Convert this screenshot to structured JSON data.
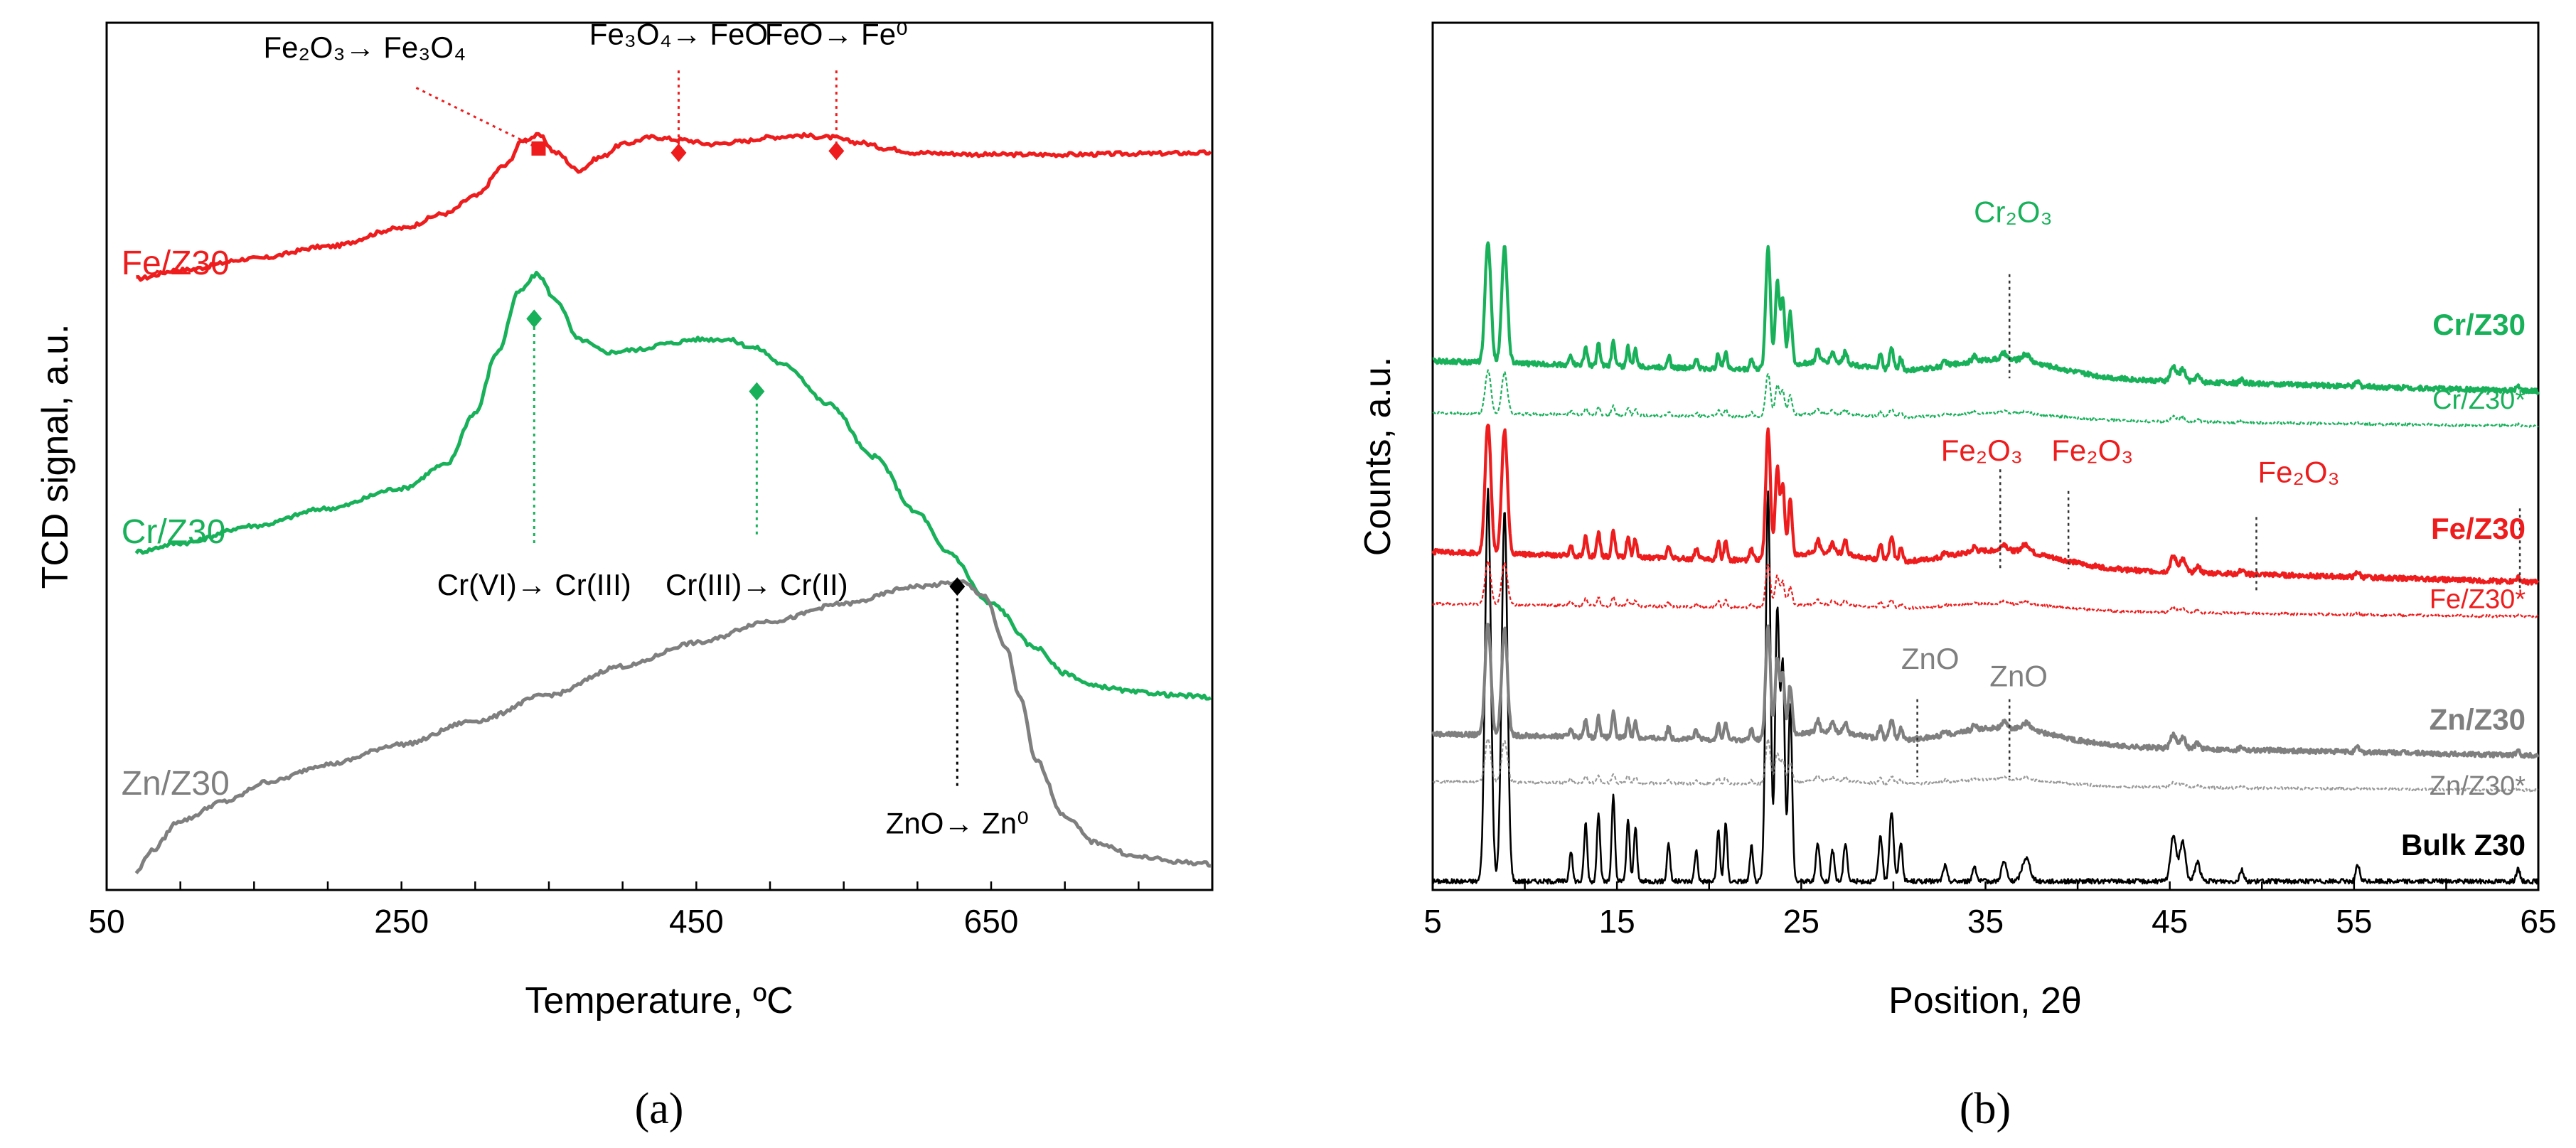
{
  "colors": {
    "fe": "#ee1c1c",
    "cr": "#18b15a",
    "zn": "#7f7f7f",
    "bulk": "#000000",
    "axis": "#000000"
  },
  "panel_labels": {
    "a": "(a)",
    "b": "(b)"
  },
  "chart_data": [
    {
      "id": "a",
      "type": "line",
      "title": "",
      "xlabel": "Temperature, ºC",
      "ylabel": "TCD signal, a.u.",
      "xlim": [
        50,
        800
      ],
      "ylim": [
        0,
        100
      ],
      "xticks": [
        50,
        250,
        450,
        650
      ],
      "xticklabels": [
        "50",
        "250",
        "450",
        "650"
      ],
      "minor_tick_step": 50,
      "grid": false,
      "series": [
        {
          "key": "fe",
          "name": "Fe/Z30",
          "color": "#ee1c1c",
          "x": [
            70,
            100,
            150,
            200,
            250,
            280,
            300,
            320,
            333,
            343,
            355,
            370,
            385,
            400,
            420,
            440,
            460,
            480,
            500,
            520,
            540,
            560,
            580,
            600,
            650,
            700,
            750,
            800
          ],
          "y": [
            70.5,
            71.5,
            72.8,
            74.2,
            76.3,
            78.0,
            80.0,
            83.5,
            86.5,
            87.0,
            85.0,
            83.0,
            84.5,
            86.0,
            86.8,
            86.5,
            86.0,
            86.3,
            86.8,
            87.0,
            86.8,
            86.2,
            85.5,
            85.0,
            84.8,
            84.8,
            84.9,
            85.0
          ]
        },
        {
          "key": "cr",
          "name": "Cr/Z30",
          "color": "#18b15a",
          "x": [
            70,
            100,
            150,
            200,
            250,
            280,
            300,
            315,
            330,
            342,
            355,
            370,
            390,
            410,
            430,
            450,
            470,
            490,
            510,
            540,
            570,
            600,
            620,
            650,
            680,
            700,
            720,
            750,
            780,
            800
          ],
          "y": [
            39.0,
            40.0,
            42.0,
            44.0,
            46.3,
            49.0,
            55.0,
            62.0,
            69.0,
            71.0,
            68.0,
            63.5,
            62.0,
            62.3,
            63.0,
            63.5,
            63.5,
            62.5,
            60.5,
            56.0,
            50.0,
            43.5,
            39.0,
            33.0,
            28.0,
            25.0,
            23.5,
            22.8,
            22.4,
            22.2
          ]
        },
        {
          "key": "zn",
          "name": "Zn/Z30",
          "color": "#7f7f7f",
          "x": [
            70,
            80,
            100,
            130,
            160,
            200,
            250,
            300,
            350,
            400,
            450,
            500,
            550,
            600,
            630,
            645,
            660,
            670,
            680,
            700,
            720,
            750,
            780,
            800
          ],
          "y": [
            2.0,
            4.5,
            8.0,
            10.2,
            12.5,
            14.5,
            16.8,
            19.5,
            22.5,
            25.8,
            28.5,
            31.0,
            33.0,
            35.0,
            35.5,
            34.0,
            28.0,
            22.0,
            15.0,
            8.5,
            5.5,
            3.8,
            3.2,
            3.0
          ]
        }
      ],
      "series_labels": [
        {
          "series": "fe",
          "text": "Fe/Z30",
          "x": 60,
          "y": 71
        },
        {
          "series": "cr",
          "text": "Cr/Z30",
          "x": 60,
          "y": 40
        },
        {
          "series": "zn",
          "text": "Zn/Z30",
          "x": 60,
          "y": 11
        }
      ],
      "annotations": [
        {
          "series": "fe",
          "x": 343,
          "marker": "square",
          "text": "Fe₂O₃→ Fe₃O₄",
          "label_x": 225,
          "label_y": 96,
          "leader": "diagonal",
          "leader_x": 260,
          "leader_y": 92.5
        },
        {
          "series": "fe",
          "x": 438,
          "marker": "diamond",
          "text": "Fe₃O₄→ FeO",
          "label_x": 438,
          "label_y": 97.5,
          "leader": "vertical",
          "leader_y": 94.5
        },
        {
          "series": "fe",
          "x": 545,
          "marker": "diamond",
          "text": "FeO→ Fe⁰",
          "label_x": 545,
          "label_y": 97.5,
          "leader": "vertical",
          "leader_y": 94.5
        },
        {
          "series": "cr",
          "x": 340,
          "marker": "diamond",
          "text": "Cr(VI)→ Cr(III)",
          "label_x": 340,
          "label_y": 34,
          "leader": "vertical",
          "leader_y": 40
        },
        {
          "series": "cr",
          "x": 491,
          "marker": "diamond",
          "text": "Cr(III)→ Cr(II)",
          "label_x": 491,
          "label_y": 34,
          "leader": "vertical",
          "leader_y": 41
        },
        {
          "series": "zn",
          "x": 627,
          "marker": "diamond",
          "text": "ZnO→ Zn⁰",
          "label_x": 627,
          "label_y": 6.5,
          "leader": "vertical",
          "leader_y": 12
        }
      ]
    },
    {
      "id": "b",
      "type": "line",
      "title": "",
      "xlabel": "Position, 2θ",
      "ylabel": "Counts, a.u.",
      "xlim": [
        5,
        65
      ],
      "ylim": [
        0,
        100
      ],
      "xticks": [
        5,
        15,
        25,
        35,
        45,
        55,
        65
      ],
      "xticklabels": [
        "5",
        "15",
        "25",
        "35",
        "45",
        "55",
        "65"
      ],
      "minor_tick_step": 5,
      "grid": false,
      "peaks": [
        {
          "pos": 8.0,
          "h": 1.0,
          "w": 0.22
        },
        {
          "pos": 8.9,
          "h": 0.95,
          "w": 0.22
        },
        {
          "pos": 12.5,
          "h": 0.08,
          "w": 0.12
        },
        {
          "pos": 13.3,
          "h": 0.15,
          "w": 0.12
        },
        {
          "pos": 14.0,
          "h": 0.18,
          "w": 0.12
        },
        {
          "pos": 14.8,
          "h": 0.22,
          "w": 0.12
        },
        {
          "pos": 15.6,
          "h": 0.16,
          "w": 0.12
        },
        {
          "pos": 16.0,
          "h": 0.14,
          "w": 0.12
        },
        {
          "pos": 17.8,
          "h": 0.1,
          "w": 0.12
        },
        {
          "pos": 19.3,
          "h": 0.08,
          "w": 0.12
        },
        {
          "pos": 20.5,
          "h": 0.13,
          "w": 0.12
        },
        {
          "pos": 20.9,
          "h": 0.15,
          "w": 0.12
        },
        {
          "pos": 22.3,
          "h": 0.09,
          "w": 0.12
        },
        {
          "pos": 23.2,
          "h": 1.0,
          "w": 0.18
        },
        {
          "pos": 23.7,
          "h": 0.7,
          "w": 0.16
        },
        {
          "pos": 24.0,
          "h": 0.55,
          "w": 0.15
        },
        {
          "pos": 24.4,
          "h": 0.45,
          "w": 0.15
        },
        {
          "pos": 25.9,
          "h": 0.1,
          "w": 0.14
        },
        {
          "pos": 26.7,
          "h": 0.08,
          "w": 0.14
        },
        {
          "pos": 27.4,
          "h": 0.1,
          "w": 0.14
        },
        {
          "pos": 29.3,
          "h": 0.12,
          "w": 0.14
        },
        {
          "pos": 29.9,
          "h": 0.18,
          "w": 0.16
        },
        {
          "pos": 30.4,
          "h": 0.1,
          "w": 0.14
        },
        {
          "pos": 32.8,
          "h": 0.04,
          "w": 0.15
        },
        {
          "pos": 34.4,
          "h": 0.04,
          "w": 0.15
        },
        {
          "pos": 36.0,
          "h": 0.05,
          "w": 0.2
        },
        {
          "pos": 37.2,
          "h": 0.06,
          "w": 0.3
        },
        {
          "pos": 45.2,
          "h": 0.12,
          "w": 0.22
        },
        {
          "pos": 45.7,
          "h": 0.1,
          "w": 0.22
        },
        {
          "pos": 46.5,
          "h": 0.05,
          "w": 0.2
        },
        {
          "pos": 48.9,
          "h": 0.03,
          "w": 0.15
        },
        {
          "pos": 55.2,
          "h": 0.04,
          "w": 0.15
        },
        {
          "pos": 63.9,
          "h": 0.03,
          "w": 0.15
        }
      ],
      "series": [
        {
          "key": "cr",
          "name": "Cr/Z30",
          "color": "#18b15a",
          "dashed": false,
          "bold_label": true,
          "baseline_start": 61,
          "baseline_end": 57.5,
          "scale": 14,
          "hump": 2.0
        },
        {
          "key": "cr_star",
          "name": "Cr/Z30*",
          "color": "#18b15a",
          "dashed": true,
          "bold_label": false,
          "baseline_start": 55,
          "baseline_end": 53.5,
          "scale": 5,
          "hump": 0.8
        },
        {
          "key": "fe",
          "name": "Fe/Z30",
          "color": "#ee1c1c",
          "dashed": false,
          "bold_label": true,
          "baseline_start": 39,
          "baseline_end": 35.5,
          "scale": 15,
          "hump": 2.0
        },
        {
          "key": "fe_star",
          "name": "Fe/Z30*",
          "color": "#ee1c1c",
          "dashed": true,
          "bold_label": false,
          "baseline_start": 33,
          "baseline_end": 31.5,
          "scale": 5,
          "hump": 0.8
        },
        {
          "key": "zn",
          "name": "Zn/Z30",
          "color": "#7f7f7f",
          "dashed": false,
          "bold_label": true,
          "baseline_start": 18,
          "baseline_end": 15.5,
          "scale": 13,
          "hump": 2.0
        },
        {
          "key": "zn_star",
          "name": "Zn/Z30*",
          "color": "#7f7f7f",
          "dashed": true,
          "bold_label": false,
          "baseline_start": 12.5,
          "baseline_end": 11.5,
          "scale": 5,
          "hump": 0.8
        },
        {
          "key": "bulk",
          "name": "Bulk Z30",
          "color": "#000000",
          "dashed": false,
          "bold_label": true,
          "baseline_start": 1,
          "baseline_end": 1,
          "scale": 45,
          "hump": 0.0
        }
      ],
      "series_labels": [
        {
          "series": "cr",
          "text": "Cr/Z30",
          "y": 64
        },
        {
          "series": "cr_star",
          "text": "Cr/Z30*",
          "y": 55.5
        },
        {
          "series": "fe",
          "text": "Fe/Z30",
          "y": 40.5
        },
        {
          "series": "fe_star",
          "text": "Fe/Z30*",
          "y": 32.5
        },
        {
          "series": "zn",
          "text": "Zn/Z30",
          "y": 18.5
        },
        {
          "series": "zn_star",
          "text": "Zn/Z30*",
          "y": 11
        },
        {
          "series": "bulk",
          "text": "Bulk Z30",
          "y": 4
        }
      ],
      "reference_lines": [
        {
          "phase": "Cr₂O₃",
          "color": "#18b15a",
          "x": 36.3,
          "y_top": 71,
          "y_bottom": 59,
          "label_x": 36.5,
          "label_y": 77
        },
        {
          "phase": "Fe₂O₃",
          "color": "#ee1c1c",
          "x": 35.8,
          "y_top": 48.5,
          "y_bottom": 37,
          "label_x": 34.8,
          "label_y": 49.5
        },
        {
          "phase": "Fe₂O₃",
          "color": "#ee1c1c",
          "x": 39.5,
          "y_top": 46,
          "y_bottom": 37,
          "label_x": 40.8,
          "label_y": 49.5
        },
        {
          "phase": "Fe₂O₃",
          "color": "#ee1c1c",
          "x": 49.7,
          "y_top": 43,
          "y_bottom": 34.5,
          "label_x": 52.0,
          "label_y": 47
        },
        {
          "phase": "",
          "color": "#ee1c1c",
          "x": 64.0,
          "y_top": 44,
          "y_bottom": 34.5,
          "label_x": 64.0,
          "label_y": 44
        },
        {
          "phase": "ZnO",
          "color": "#7f7f7f",
          "x": 31.3,
          "y_top": 22,
          "y_bottom": 13,
          "label_x": 32.0,
          "label_y": 25.5
        },
        {
          "phase": "ZnO",
          "color": "#7f7f7f",
          "x": 36.3,
          "y_top": 22,
          "y_bottom": 13,
          "label_x": 36.8,
          "label_y": 23.5
        }
      ]
    }
  ]
}
